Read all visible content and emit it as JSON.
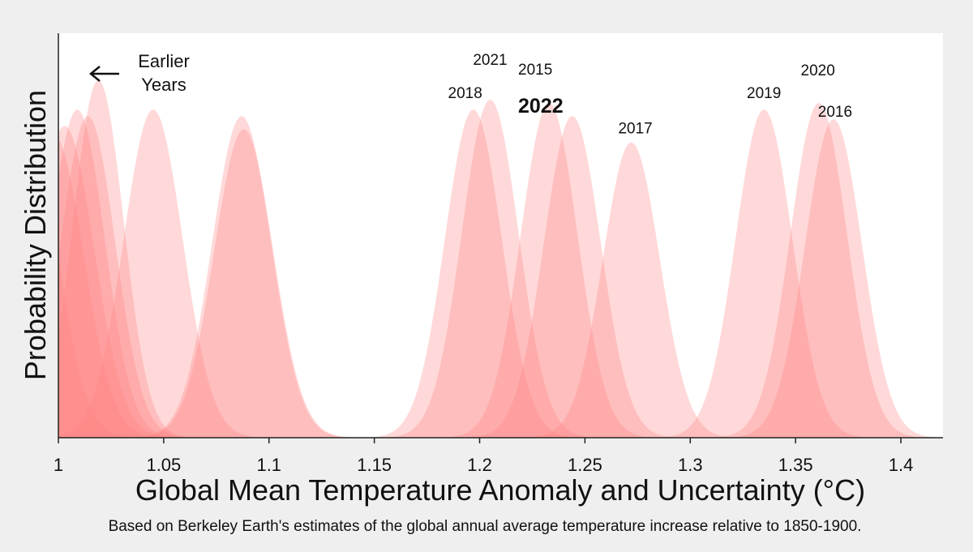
{
  "chart_data": {
    "type": "area",
    "title": "",
    "xlabel": "Global Mean Temperature Anomaly and Uncertainty (°C)",
    "ylabel": "Probability Distribution",
    "footnote": "Based on Berkeley Earth's estimates of the global annual average temperature increase relative to 1850-1900.",
    "xlim": [
      1.0,
      1.42
    ],
    "x_ticks": [
      1.0,
      1.05,
      1.1,
      1.15,
      1.2,
      1.25,
      1.3,
      1.35,
      1.4
    ],
    "x_tick_labels": [
      "1",
      "1.05",
      "1.1",
      "1.15",
      "1.2",
      "1.25",
      "1.3",
      "1.35",
      "1.4"
    ],
    "grid": false,
    "fill_color": "#ff8080",
    "highlight_year": "2022",
    "annotation": {
      "lines": [
        "Earlier",
        "Years"
      ],
      "arrow": "left"
    },
    "series": [
      {
        "name": "",
        "mean": 0.985,
        "sd": 0.014,
        "peak": 0.98
      },
      {
        "name": "",
        "mean": 0.998,
        "sd": 0.014,
        "peak": 0.92
      },
      {
        "name": "",
        "mean": 1.003,
        "sd": 0.014,
        "peak": 0.95
      },
      {
        "name": "",
        "mean": 1.009,
        "sd": 0.013,
        "peak": 1.0
      },
      {
        "name": "",
        "mean": 1.014,
        "sd": 0.013,
        "peak": 0.98
      },
      {
        "name": "",
        "mean": 1.019,
        "sd": 0.012,
        "peak": 1.09
      },
      {
        "name": "",
        "mean": 1.045,
        "sd": 0.014,
        "peak": 1.0
      },
      {
        "name": "",
        "mean": 1.087,
        "sd": 0.014,
        "peak": 0.98
      },
      {
        "name": "",
        "mean": 1.088,
        "sd": 0.014,
        "peak": 0.94
      },
      {
        "name": "2018",
        "mean": 1.197,
        "sd": 0.0135,
        "peak": 1.0
      },
      {
        "name": "2021",
        "mean": 1.205,
        "sd": 0.0135,
        "peak": 1.03
      },
      {
        "name": "2015",
        "mean": 1.233,
        "sd": 0.0135,
        "peak": 1.02
      },
      {
        "name": "2022",
        "mean": 1.244,
        "sd": 0.0135,
        "peak": 0.98
      },
      {
        "name": "2017",
        "mean": 1.272,
        "sd": 0.0135,
        "peak": 0.9
      },
      {
        "name": "2019",
        "mean": 1.335,
        "sd": 0.0135,
        "peak": 1.0
      },
      {
        "name": "2020",
        "mean": 1.361,
        "sd": 0.0135,
        "peak": 1.02
      },
      {
        "name": "2016",
        "mean": 1.368,
        "sd": 0.0135,
        "peak": 0.97
      }
    ]
  }
}
